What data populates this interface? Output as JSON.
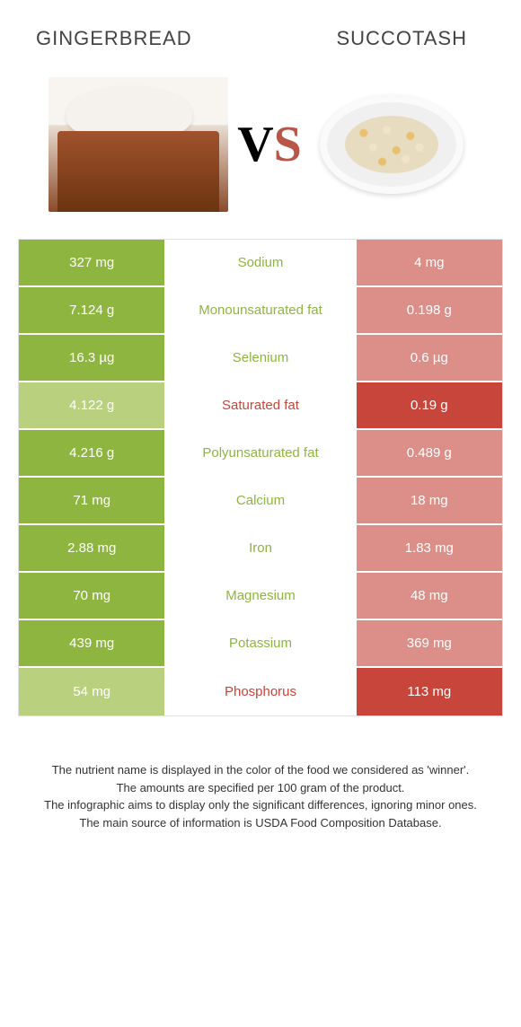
{
  "header": {
    "left_title": "Gingerbread",
    "right_title": "Succotash",
    "vs_v": "V",
    "vs_s": "S"
  },
  "colors": {
    "left_winner": "#8eb53f",
    "left_loser": "#b9d07e",
    "right_winner": "#c7453a",
    "right_loser": "#db8f88",
    "mid_left_text": "#8eb53f",
    "mid_right_text": "#c7453a"
  },
  "rows": [
    {
      "left": "327 mg",
      "mid": "Sodium",
      "right": "4 mg",
      "winner": "left"
    },
    {
      "left": "7.124 g",
      "mid": "Monounsaturated fat",
      "right": "0.198 g",
      "winner": "left"
    },
    {
      "left": "16.3 µg",
      "mid": "Selenium",
      "right": "0.6 µg",
      "winner": "left"
    },
    {
      "left": "4.122 g",
      "mid": "Saturated fat",
      "right": "0.19 g",
      "winner": "right"
    },
    {
      "left": "4.216 g",
      "mid": "Polyunsaturated fat",
      "right": "0.489 g",
      "winner": "left"
    },
    {
      "left": "71 mg",
      "mid": "Calcium",
      "right": "18 mg",
      "winner": "left"
    },
    {
      "left": "2.88 mg",
      "mid": "Iron",
      "right": "1.83 mg",
      "winner": "left"
    },
    {
      "left": "70 mg",
      "mid": "Magnesium",
      "right": "48 mg",
      "winner": "left"
    },
    {
      "left": "439 mg",
      "mid": "Potassium",
      "right": "369 mg",
      "winner": "left"
    },
    {
      "left": "54 mg",
      "mid": "Phosphorus",
      "right": "113 mg",
      "winner": "right"
    }
  ],
  "footer": {
    "line1": "The nutrient name is displayed in the color of the food we considered as 'winner'.",
    "line2": "The amounts are specified per 100 gram of the product.",
    "line3": "The infographic aims to display only the significant differences, ignoring minor ones.",
    "line4": "The main source of information is USDA Food Composition Database."
  }
}
